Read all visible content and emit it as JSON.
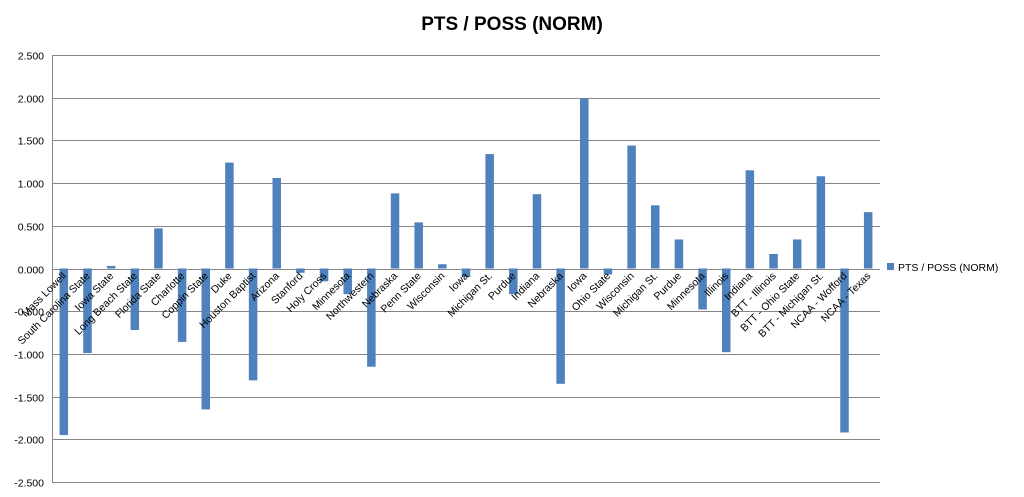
{
  "chart_data": {
    "type": "bar",
    "title": "PTS / POSS (NORM)",
    "xlabel": "",
    "ylabel": "",
    "ylim": [
      -2.5,
      2.5
    ],
    "yticks": [
      2.5,
      2.0,
      1.5,
      1.0,
      0.5,
      0.0,
      -0.5,
      -1.0,
      -1.5,
      -2.0,
      -2.5
    ],
    "ytick_labels": [
      "2.500",
      "2.000",
      "1.500",
      "1.000",
      "0.500",
      "0.000",
      "-0.500",
      "-1.000",
      "-1.500",
      "-2.000",
      "-2.500"
    ],
    "grid": true,
    "legend_position": "right",
    "categories": [
      "Mass Lowell",
      "South Carolina State",
      "Iowa State",
      "Long Beach State",
      "Florida State",
      "Charlotte",
      "Coppin State",
      "Duke",
      "Houston Baptist",
      "Arizona",
      "Stanford",
      "Holy Cross",
      "Minnesota",
      "Northwestern",
      "Nebraska",
      "Penn State",
      "Wisconsin",
      "Iowa",
      "Michigan St.",
      "Purdue",
      "Indiana",
      "Nebraska",
      "Iowa",
      "Ohio State",
      "Wisconsin",
      "Michigan St.",
      "Purdue",
      "Minnesota",
      "Illinois",
      "Indiana",
      "BTT - Illinois",
      "BTT - Ohio State",
      "BTT - Michigan St.",
      "NCAA - Wofford",
      "NCAA - Texas"
    ],
    "series": [
      {
        "name": "PTS / POSS (NORM)",
        "color": "#4f81bd",
        "values": [
          -1.95,
          -0.99,
          0.03,
          -0.72,
          0.47,
          -0.86,
          -1.65,
          1.24,
          -1.31,
          1.06,
          -0.05,
          -0.15,
          -0.3,
          -1.15,
          0.88,
          0.54,
          0.05,
          -0.1,
          1.34,
          -0.3,
          0.87,
          -1.35,
          1.99,
          -0.07,
          1.44,
          0.74,
          0.34,
          -0.48,
          -0.98,
          1.15,
          0.17,
          0.34,
          1.08,
          -1.92,
          0.66
        ]
      }
    ]
  }
}
